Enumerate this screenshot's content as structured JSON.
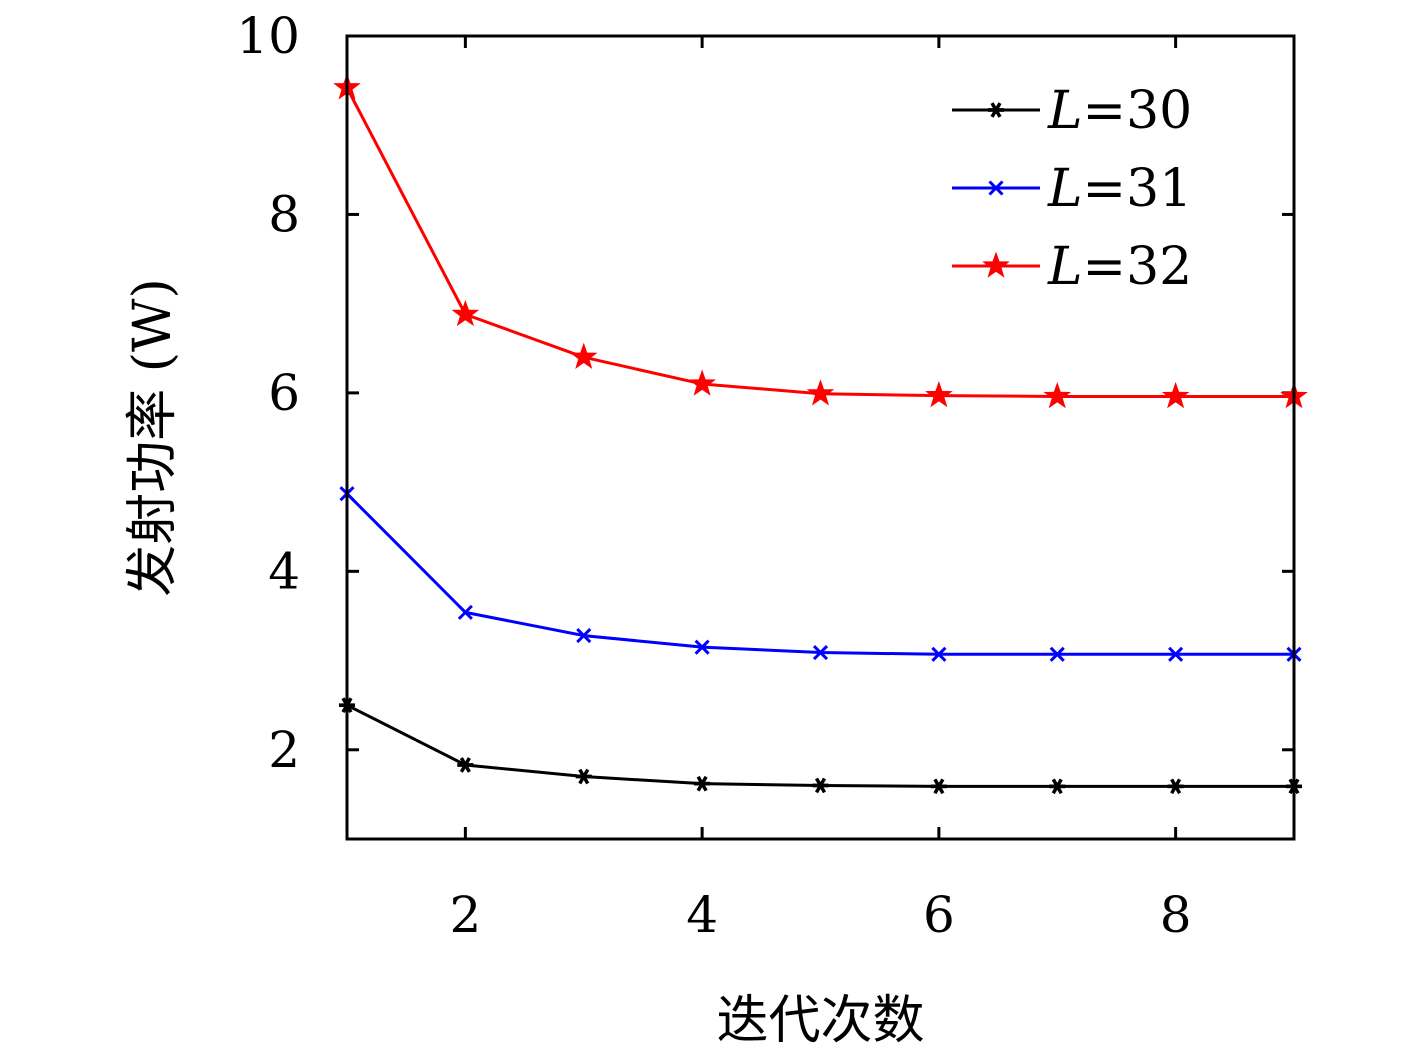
{
  "chart_data": {
    "type": "line",
    "xlabel": "迭代次数",
    "ylabel": "发射功率 (W)",
    "xlim": [
      1,
      9
    ],
    "ylim": [
      1,
      10
    ],
    "xticks": [
      2,
      4,
      6,
      8
    ],
    "yticks": [
      2,
      4,
      6,
      8,
      10
    ],
    "grid": false,
    "legend_position": "top-right",
    "x": [
      1,
      2,
      3,
      4,
      5,
      6,
      7,
      8,
      9
    ],
    "series": [
      {
        "name": "L=30",
        "name_var": "L",
        "name_rest": "=30",
        "color": "#000000",
        "marker": "asterisk",
        "values": [
          2.5,
          1.83,
          1.7,
          1.62,
          1.6,
          1.59,
          1.59,
          1.59,
          1.59
        ]
      },
      {
        "name": "L=31",
        "name_var": "L",
        "name_rest": "=31",
        "color": "#0000ff",
        "marker": "x",
        "values": [
          4.87,
          3.54,
          3.28,
          3.15,
          3.09,
          3.07,
          3.07,
          3.07,
          3.07
        ]
      },
      {
        "name": "L=32",
        "name_var": "L",
        "name_rest": "=32",
        "color": "#ff0000",
        "marker": "star",
        "values": [
          9.42,
          6.88,
          6.4,
          6.1,
          5.99,
          5.97,
          5.96,
          5.96,
          5.96
        ]
      }
    ]
  }
}
